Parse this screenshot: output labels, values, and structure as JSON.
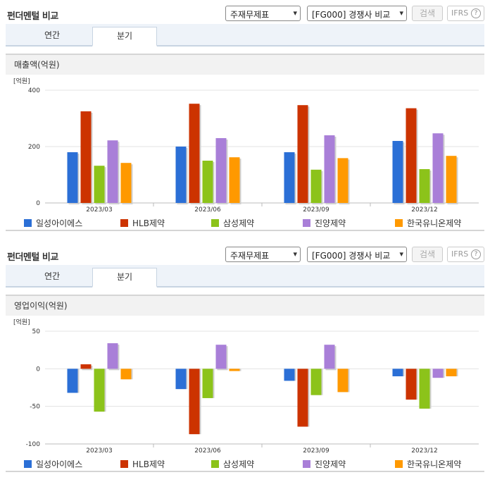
{
  "sections": [
    {
      "title": "펀더멘털 비교",
      "select_statement": "주재무제표",
      "select_compare": "[FG000] 경쟁사 비교",
      "search_label": "검색",
      "ifrs_label": "IFRS",
      "help_symbol": "?",
      "tabs": [
        "연간",
        "분기"
      ],
      "active_tab": "분기",
      "chart_title": "매출액(억원)"
    },
    {
      "title": "펀더멘털 비교",
      "select_statement": "주재무제표",
      "select_compare": "[FG000] 경쟁사 비교",
      "search_label": "검색",
      "ifrs_label": "IFRS",
      "help_symbol": "?",
      "tabs": [
        "연간",
        "분기"
      ],
      "active_tab": "분기",
      "chart_title": "영업이익(억원)"
    }
  ],
  "legend": [
    {
      "name": "일성아이에스",
      "color": "#2b6fd6"
    },
    {
      "name": "HLB제약",
      "color": "#cc3300"
    },
    {
      "name": "삼성제약",
      "color": "#8cc31a"
    },
    {
      "name": "진양제약",
      "color": "#a97fd8"
    },
    {
      "name": "한국유니온제약",
      "color": "#ff9900"
    }
  ],
  "chart_data": [
    {
      "type": "bar",
      "unit_label": "[억원]",
      "categories": [
        "2023/03",
        "2023/06",
        "2023/09",
        "2023/12"
      ],
      "ylim": [
        0,
        400
      ],
      "yticks": [
        0,
        200,
        400
      ],
      "series": [
        {
          "name": "일성아이에스",
          "values": [
            180,
            200,
            180,
            220
          ]
        },
        {
          "name": "HLB제약",
          "values": [
            325,
            352,
            347,
            336
          ]
        },
        {
          "name": "삼성제약",
          "values": [
            132,
            150,
            118,
            120
          ]
        },
        {
          "name": "진양제약",
          "values": [
            222,
            230,
            240,
            247
          ]
        },
        {
          "name": "한국유니온제약",
          "values": [
            142,
            162,
            159,
            167
          ]
        }
      ]
    },
    {
      "type": "bar",
      "unit_label": "[억원]",
      "categories": [
        "2023/03",
        "2023/06",
        "2023/09",
        "2023/12"
      ],
      "ylim": [
        -100,
        50
      ],
      "yticks": [
        50,
        0,
        -50,
        -100
      ],
      "series": [
        {
          "name": "일성아이에스",
          "values": [
            -32,
            -27,
            -16,
            -10
          ]
        },
        {
          "name": "HLB제약",
          "values": [
            6,
            -87,
            -77,
            -41
          ]
        },
        {
          "name": "삼성제약",
          "values": [
            -57,
            -39,
            -35,
            -53
          ]
        },
        {
          "name": "진양제약",
          "values": [
            34,
            32,
            32,
            -12
          ]
        },
        {
          "name": "한국유니온제약",
          "values": [
            -14,
            -3,
            -31,
            -10
          ]
        }
      ]
    }
  ]
}
